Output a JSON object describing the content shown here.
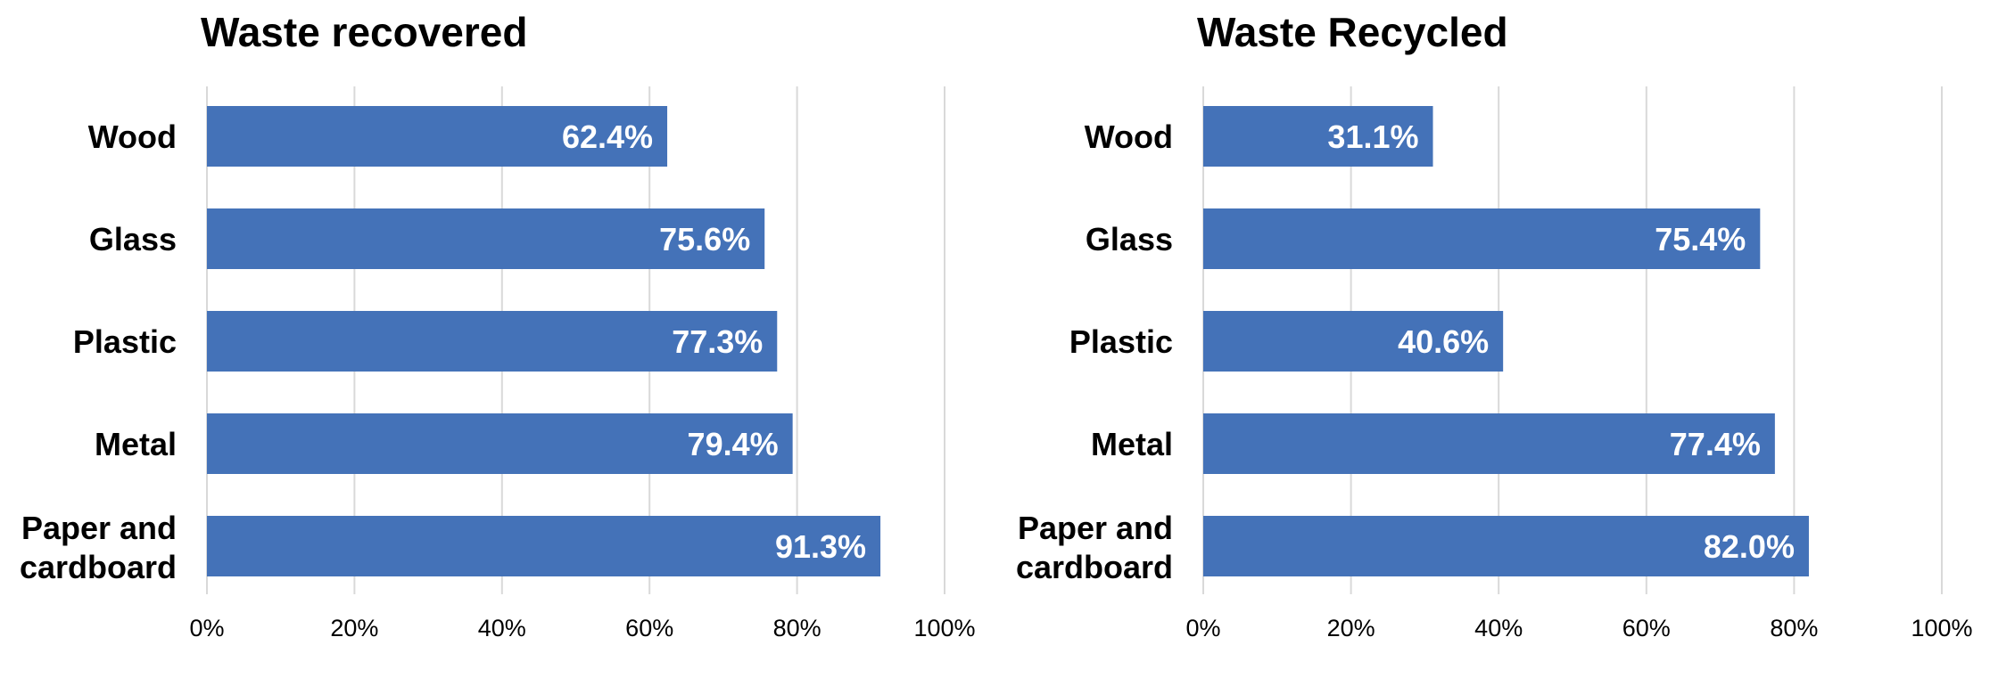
{
  "chart_data": [
    {
      "type": "bar",
      "orientation": "horizontal",
      "title": "Waste recovered",
      "xlabel": "",
      "ylabel": "",
      "categories": [
        "Wood",
        "Glass",
        "Plastic",
        "Metal",
        "Paper and cardboard"
      ],
      "values": [
        62.4,
        75.6,
        77.3,
        79.4,
        91.3
      ],
      "data_labels": [
        "62.4%",
        "75.6%",
        "77.3%",
        "79.4%",
        "91.3%"
      ],
      "xlim": [
        0,
        100
      ],
      "ticks": [
        0,
        20,
        40,
        60,
        80,
        100
      ],
      "tick_labels": [
        "0%",
        "20%",
        "40%",
        "60%",
        "80%",
        "100%"
      ],
      "grid": true,
      "legend": "none",
      "bar_color": "#4472B8"
    },
    {
      "type": "bar",
      "orientation": "horizontal",
      "title": "Waste Recycled",
      "xlabel": "",
      "ylabel": "",
      "categories": [
        "Wood",
        "Glass",
        "Plastic",
        "Metal",
        "Paper and cardboard"
      ],
      "values": [
        31.1,
        75.4,
        40.6,
        77.4,
        82.0
      ],
      "data_labels": [
        "31.1%",
        "75.4%",
        "40.6%",
        "77.4%",
        "82.0%"
      ],
      "xlim": [
        0,
        100
      ],
      "ticks": [
        0,
        20,
        40,
        60,
        80,
        100
      ],
      "tick_labels": [
        "0%",
        "20%",
        "40%",
        "60%",
        "80%",
        "100%"
      ],
      "grid": true,
      "legend": "none",
      "bar_color": "#4472B8"
    }
  ]
}
